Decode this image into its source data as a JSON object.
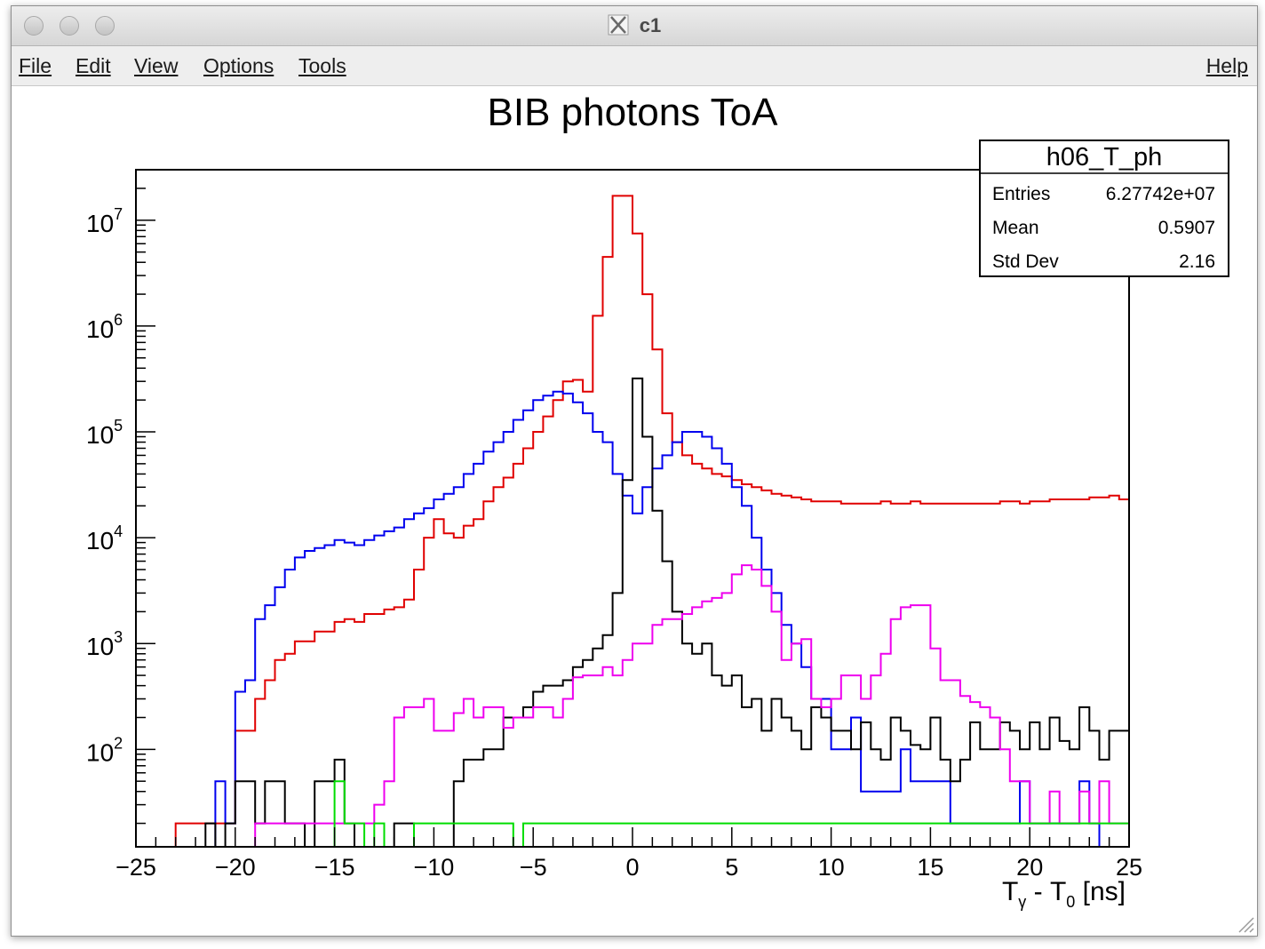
{
  "window": {
    "title": "c1",
    "menu": [
      "File",
      "Edit",
      "View",
      "Options",
      "Tools"
    ],
    "help": "Help"
  },
  "chart_data": {
    "type": "histogram-step",
    "title": "BIB photons ToA",
    "xlabel": "T_γ - T_0 [ns]",
    "xlim": [
      -25,
      25
    ],
    "yscale": "log",
    "ylim": [
      12,
      30000000
    ],
    "x_ticks": [
      "−25",
      "−20",
      "−15",
      "−10",
      "−5",
      "0",
      "5",
      "10",
      "15",
      "20",
      "25"
    ],
    "y_ticks": [
      {
        "base": "10",
        "exp": "2"
      },
      {
        "base": "10",
        "exp": "3"
      },
      {
        "base": "10",
        "exp": "4"
      },
      {
        "base": "10",
        "exp": "5"
      },
      {
        "base": "10",
        "exp": "6"
      },
      {
        "base": "10",
        "exp": "7"
      }
    ],
    "bin_width": 0.5,
    "stats": {
      "name": "h06_T_ph",
      "rows": [
        {
          "label": "Entries",
          "value": "6.27742e+07"
        },
        {
          "label": "Mean",
          "value": "0.5907"
        },
        {
          "label": "Std Dev",
          "value": "2.16"
        }
      ]
    },
    "series": [
      {
        "color": "#e00000",
        "values": [
          0,
          0,
          0,
          0,
          20,
          20,
          20,
          20,
          20,
          20,
          150,
          150,
          300,
          450,
          700,
          800,
          1050,
          1050,
          1300,
          1300,
          1600,
          1700,
          1600,
          1900,
          1900,
          2100,
          2200,
          2600,
          5000,
          10000,
          15000,
          11000,
          10000,
          13000,
          15000,
          22000,
          30000,
          37000,
          50000,
          70000,
          100000,
          140000,
          200000,
          300000,
          310000,
          240000,
          1250000,
          4500000,
          17000000,
          17000000,
          7500000,
          2000000,
          600000,
          150000,
          80000,
          60000,
          50000,
          45000,
          40000,
          38000,
          35000,
          32000,
          30000,
          28000,
          26000,
          25000,
          24000,
          23000,
          22000,
          22000,
          22000,
          21000,
          21000,
          21000,
          21000,
          22000,
          21000,
          21000,
          22000,
          21000,
          21000,
          21000,
          21000,
          21000,
          21000,
          21000,
          21000,
          22000,
          22000,
          21000,
          22000,
          22000,
          23000,
          23000,
          23000,
          23000,
          24000,
          24000,
          25000,
          23000
        ]
      },
      {
        "color": "#0000ee",
        "values": [
          0,
          0,
          0,
          0,
          0,
          0,
          0,
          0,
          50,
          20,
          350,
          450,
          1700,
          2300,
          3400,
          5000,
          6500,
          7500,
          8000,
          8500,
          9500,
          9000,
          8500,
          9500,
          10500,
          11500,
          12500,
          15000,
          17000,
          19000,
          23000,
          26000,
          30000,
          40000,
          50000,
          65000,
          80000,
          100000,
          130000,
          160000,
          200000,
          220000,
          240000,
          230000,
          190000,
          150000,
          100000,
          80000,
          40000,
          25000,
          17000,
          30000,
          45000,
          60000,
          80000,
          100000,
          100000,
          90000,
          70000,
          50000,
          30000,
          20000,
          10000,
          5000,
          3000,
          1500,
          1000,
          600,
          300,
          300,
          100,
          100,
          200,
          40,
          40,
          40,
          40,
          100,
          50,
          50,
          50,
          50,
          20,
          20,
          20,
          20,
          20,
          20,
          20,
          50,
          20,
          20,
          20,
          20,
          20,
          50,
          20,
          0,
          0
        ]
      },
      {
        "color": "#000000",
        "values": [
          0,
          0,
          0,
          0,
          0,
          0,
          0,
          20,
          0,
          20,
          50,
          50,
          20,
          50,
          50,
          20,
          20,
          0,
          50,
          50,
          80,
          20,
          0,
          0,
          0,
          0,
          20,
          20,
          0,
          0,
          0,
          0,
          50,
          80,
          80,
          100,
          100,
          200,
          200,
          250,
          350,
          400,
          400,
          450,
          600,
          700,
          900,
          1200,
          3000,
          35000,
          320000,
          90000,
          18000,
          6000,
          2000,
          1000,
          800,
          1000,
          500,
          400,
          500,
          250,
          300,
          150,
          300,
          200,
          150,
          100,
          250,
          200,
          150,
          150,
          100,
          180,
          100,
          80,
          200,
          150,
          110,
          100,
          200,
          80,
          50,
          80,
          180,
          100,
          100,
          180,
          150,
          100,
          180,
          100,
          200,
          120,
          100,
          250,
          150,
          80,
          150,
          150
        ]
      },
      {
        "color": "#ee00ee",
        "values": [
          0,
          0,
          0,
          0,
          0,
          0,
          0,
          0,
          0,
          0,
          0,
          0,
          20,
          20,
          20,
          20,
          20,
          20,
          20,
          20,
          20,
          20,
          20,
          20,
          30,
          50,
          200,
          250,
          250,
          300,
          150,
          150,
          220,
          300,
          200,
          250,
          250,
          160,
          200,
          200,
          250,
          250,
          200,
          300,
          480,
          500,
          500,
          600,
          500,
          700,
          1000,
          1000,
          1500,
          1700,
          1700,
          1900,
          2200,
          2500,
          2700,
          3000,
          4500,
          5500,
          5000,
          3500,
          2000,
          700,
          1000,
          1100,
          300,
          250,
          300,
          500,
          500,
          300,
          500,
          800,
          1700,
          2200,
          2300,
          2300,
          900,
          450,
          450,
          320,
          280,
          250,
          200,
          100,
          50,
          50,
          20,
          20,
          40,
          20,
          20,
          40,
          20,
          50,
          20,
          20
        ]
      },
      {
        "color": "#00dd00",
        "values": [
          0,
          0,
          0,
          0,
          0,
          0,
          0,
          0,
          0,
          0,
          0,
          0,
          0,
          0,
          0,
          0,
          0,
          0,
          0,
          0,
          50,
          20,
          20,
          0,
          20,
          0,
          0,
          0,
          20,
          20,
          20,
          20,
          20,
          20,
          20,
          20,
          20,
          20,
          0,
          20,
          20,
          20,
          20,
          20,
          20,
          20,
          20,
          20,
          20,
          20,
          20,
          20,
          20,
          20,
          20,
          20,
          20,
          20,
          20,
          20,
          20,
          20,
          20,
          20,
          20,
          20,
          20,
          20,
          20,
          20,
          20,
          20,
          20,
          20,
          20,
          20,
          20,
          20,
          20,
          20,
          20,
          20,
          20,
          20,
          20,
          20,
          20,
          20,
          20,
          20,
          20,
          20,
          20,
          20,
          20,
          20,
          20,
          20,
          20,
          20
        ]
      }
    ]
  }
}
